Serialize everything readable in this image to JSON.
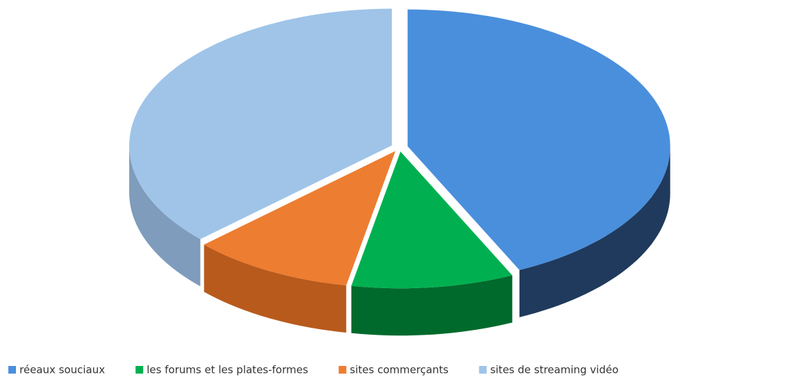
{
  "chart_data": {
    "type": "pie3d",
    "categories": [
      "réeaux souciaux",
      "les forums et les plates-formes",
      "sites commerçants",
      "sites de streaming vidéo"
    ],
    "values": [
      43,
      10,
      10,
      37
    ],
    "colors": [
      "#4a8fdc",
      "#00b050",
      "#ed7d31",
      "#9fc4e8"
    ],
    "side_colors": [
      "#1f3a5c",
      "#006a2c",
      "#b85a1c",
      "#7f9cbc"
    ],
    "legend": "bottom"
  }
}
